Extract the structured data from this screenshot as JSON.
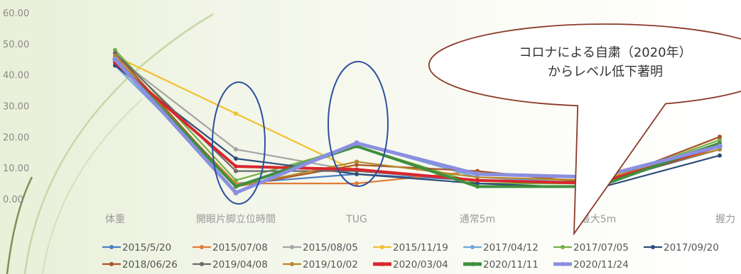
{
  "chart_data": {
    "type": "line",
    "categories": [
      "体重",
      "開眼片脚立位時間",
      "TUG",
      "通常5m",
      "最大5m",
      "握力"
    ],
    "ylim": [
      0,
      60
    ],
    "yticks": [
      "60.00",
      "50.00",
      "40.00",
      "30.00",
      "20.00",
      "10.00",
      "0.00"
    ],
    "grid": false,
    "legend_position": "bottom",
    "series": [
      {
        "name": "2015/5/20",
        "color": "#4a7fc1",
        "values": [
          44,
          5,
          8,
          6,
          6,
          16
        ]
      },
      {
        "name": "2015/07/08",
        "color": "#e07b39",
        "values": [
          45,
          5,
          5,
          9,
          5,
          20
        ]
      },
      {
        "name": "2015/08/05",
        "color": "#a5a5a5",
        "values": [
          46,
          16,
          9,
          6,
          6,
          18
        ]
      },
      {
        "name": "2015/11/19",
        "color": "#f2c12e",
        "values": [
          46,
          27.5,
          9,
          6,
          6,
          17
        ]
      },
      {
        "name": "2017/04/12",
        "color": "#6ea9dc",
        "values": [
          43,
          4,
          18,
          7,
          5,
          16
        ]
      },
      {
        "name": "2017/07/05",
        "color": "#72b043",
        "values": [
          48,
          6,
          17,
          5,
          5,
          19
        ]
      },
      {
        "name": "2017/09/20",
        "color": "#2c4d7a",
        "values": [
          43,
          13,
          8,
          5,
          3.5,
          14
        ]
      },
      {
        "name": "2018/06/26",
        "color": "#a65628",
        "values": [
          47,
          4,
          11,
          9,
          5,
          20
        ]
      },
      {
        "name": "2019/04/08",
        "color": "#6b6b6b",
        "values": [
          47,
          9,
          9,
          6,
          5,
          16
        ]
      },
      {
        "name": "2019/10/02",
        "color": "#b8862b",
        "values": [
          46,
          4,
          12,
          7,
          6,
          16
        ]
      },
      {
        "name": "2020/03/04",
        "color": "#d9262e",
        "values": [
          44,
          10.5,
          9.5,
          6,
          5,
          17
        ]
      },
      {
        "name": "2020/11/11",
        "color": "#3e8f3e",
        "values": [
          45,
          4,
          17,
          4,
          4,
          18
        ]
      },
      {
        "name": "2020/11/24",
        "color": "#8b8fe0",
        "values": [
          45,
          2,
          18,
          8,
          7,
          17
        ]
      }
    ],
    "annotation": {
      "text_line1": "コロナによる自粛（2020年）",
      "text_line2": "からレベル低下著明"
    }
  }
}
